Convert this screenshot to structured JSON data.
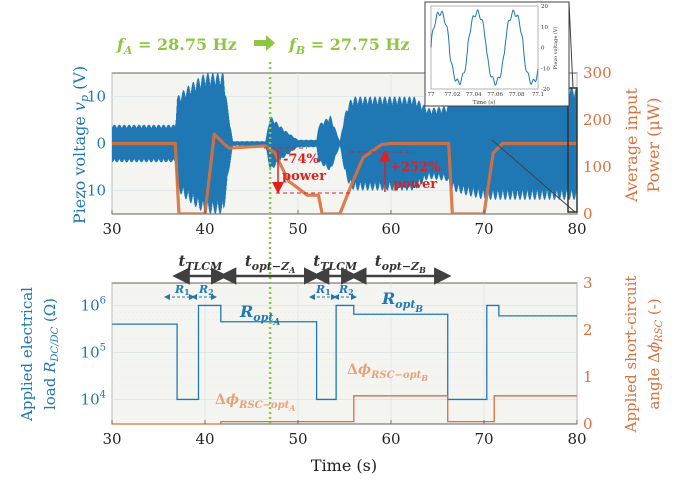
{
  "chart_data": [
    {
      "type": "line",
      "panel": "top",
      "xlabel": "",
      "ylabel_left": "Piezo voltage v_p (V)",
      "ylabel_right": "Average input Power (μW)",
      "xlim": [
        30,
        80
      ],
      "ylim_left": [
        -15,
        15
      ],
      "ylim_right": [
        0,
        300
      ],
      "x_ticks": [
        "30",
        "40",
        "50",
        "60",
        "70",
        "80"
      ],
      "y_left_ticks": [
        "10",
        "0",
        "-10"
      ],
      "y_right_ticks": [
        "300",
        "200",
        "100",
        "0"
      ],
      "series": [
        {
          "name": "",
          "role": "piezo voltage amplitude envelope (V)",
          "color": "#1f77b4",
          "x": [
            30,
            36.8,
            37,
            38,
            39.3,
            40,
            41,
            42,
            42.5,
            43,
            46.5,
            47,
            48.5,
            50,
            52,
            52.2,
            53.5,
            54.5,
            55,
            55.5,
            56,
            58.5,
            62.5,
            64,
            66,
            66.5,
            68,
            70,
            71,
            71.5,
            80
          ],
          "values": [
            4,
            4,
            10,
            12,
            14,
            15,
            15,
            15,
            7,
            0.5,
            0.5,
            6,
            3,
            0.8,
            0.8,
            4,
            6,
            0.5,
            6,
            9,
            10,
            10,
            10,
            7.5,
            8,
            10,
            11,
            12,
            12,
            12,
            12
          ]
        },
        {
          "name": "",
          "role": "average input power (μW)",
          "color": "#d9703d",
          "x": [
            30,
            36.8,
            37.2,
            40,
            41,
            42,
            42.6,
            46.5,
            47.5,
            49,
            51,
            52.2,
            52.6,
            54.5,
            55.7,
            57,
            59,
            60,
            62,
            64,
            66.2,
            66.6,
            70,
            71,
            72,
            74,
            80
          ],
          "values": [
            150,
            150,
            0,
            0,
            170,
            150,
            140,
            145,
            130,
            70,
            40,
            40,
            0,
            0,
            60,
            120,
            148,
            150,
            150,
            150,
            150,
            0,
            0,
            130,
            150,
            150,
            150
          ]
        }
      ],
      "annotations": [
        {
          "text_lines": [
            "-74%",
            "power"
          ],
          "x": 50,
          "y_power": 148
        },
        {
          "text_lines": [
            "+252%",
            "power"
          ],
          "x": 60,
          "y_power": 150
        }
      ]
    },
    {
      "type": "line",
      "panel": "bottom",
      "xlabel": "Time (s)",
      "ylabel_left": "Applied electrical load R_DC/DC (Ω)",
      "ylabel_right": "Applied short-circuit angle Δφ_RSC (-)",
      "xlim": [
        30,
        80
      ],
      "y_left_scale": "log",
      "ylim_left": [
        3000,
        3000000
      ],
      "ylim_right": [
        0,
        3
      ],
      "x_ticks": [
        "30",
        "40",
        "50",
        "60",
        "70",
        "80"
      ],
      "y_left_ticks": [
        "10^6",
        "10^5",
        "10^4"
      ],
      "y_right_ticks": [
        "3",
        "2",
        "1",
        "0"
      ],
      "series": [
        {
          "name": "",
          "role": "R_DC/DC (Ω)",
          "color": "#1f77b4",
          "x": [
            30,
            37,
            37,
            39.3,
            39.3,
            40,
            40,
            41.7,
            41.7,
            52,
            52,
            54.1,
            54.1,
            56,
            56,
            66.1,
            66.1,
            70.3,
            70.3,
            71.6,
            71.6,
            80
          ],
          "values": [
            400000,
            400000,
            10000,
            10000,
            1000000,
            1000000,
            1000000,
            1000000,
            450000,
            450000,
            10000,
            10000,
            1000000,
            1000000,
            650000,
            650000,
            10000,
            10000,
            1000000,
            1000000,
            600000,
            600000
          ]
        },
        {
          "name": "",
          "role": "Δφ_RSC (-)",
          "color": "#d9703d",
          "x": [
            30,
            41.7,
            41.7,
            56,
            56,
            66.1,
            66.1,
            71.1,
            71.1,
            80
          ],
          "values": [
            0,
            0,
            0.05,
            0.05,
            0.6,
            0.6,
            0.05,
            0.05,
            0.6,
            0.6
          ]
        }
      ],
      "phase_arrows": [
        {
          "label": "t_TLCM",
          "from": 37,
          "to": 42
        },
        {
          "label": "t_opt-Z_A",
          "from": 42,
          "to": 52
        },
        {
          "label": "t_TLCM",
          "from": 52,
          "to": 56
        },
        {
          "label": "t_opt-Z_B",
          "from": 56,
          "to": 66
        }
      ],
      "annotations": [
        {
          "text": "R_opt_A",
          "x": 46.5
        },
        {
          "text": "R_opt_B",
          "x": 62
        },
        {
          "text": "Δφ_RSC-opt_A",
          "x": 46.5
        },
        {
          "text": "Δφ_RSC-opt_B",
          "x": 62
        },
        {
          "text": "R_1",
          "x": 38.2
        },
        {
          "text": "R_2",
          "x": 40.9
        },
        {
          "text": "R_1",
          "x": 53.1
        },
        {
          "text": "R_2",
          "x": 55.1
        }
      ]
    }
  ],
  "frequency_labels": {
    "fa": "f_A = 28.75 Hz",
    "fb": "f_B = 27.75 Hz",
    "change_time": 47
  },
  "inset": {
    "xlabel": "Time (s)",
    "ylabel": "Piezo voltage (V)",
    "x_ticks": [
      "77",
      "77.02",
      "77.04",
      "77.06",
      "77.08",
      "77.1"
    ],
    "y_ticks": [
      "20",
      "10",
      "0",
      "-10",
      "-20"
    ]
  },
  "colors": {
    "blue": "#1f77b4",
    "orange": "#d9703d",
    "green": "#8dc63f",
    "red": "#e11f1f",
    "panel_bg": "#f4f5f1"
  }
}
